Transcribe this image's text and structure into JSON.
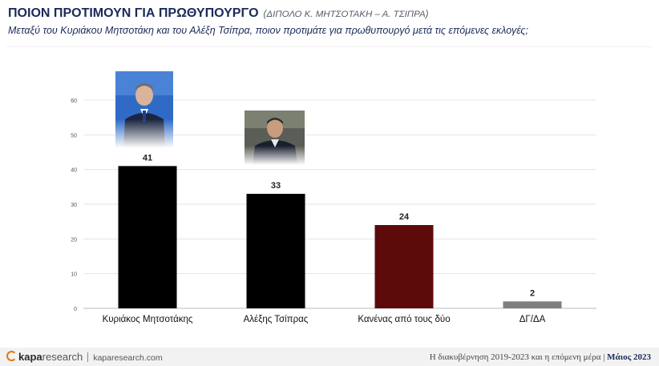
{
  "header": {
    "title": "ΠΟΙΟΝ ΠΡΟΤΙΜΟΥΝ ΓΙΑ ΠΡΩΘΥΠΟΥΡΓΟ",
    "subtitle": "(ΔΙΠΟΛΟ Κ. ΜΗΤΣΟΤΑΚΗ – Α. ΤΣΙΠΡΑ)",
    "question": "Μεταξύ του Κυριάκου Μητσοτάκη και του Αλέξη Τσίπρα, ποιον προτιμάτε για πρωθυπουργό μετά τις επόμενες εκλογές;"
  },
  "chart_data": {
    "type": "bar",
    "categories": [
      "Κυριάκος Μητσοτάκης",
      "Αλέξης Τσίπρας",
      "Κανένας από τους δύο",
      "ΔΓ/ΔΑ"
    ],
    "values": [
      41,
      33,
      24,
      2
    ],
    "data_labels": [
      "41",
      "33",
      "24",
      "2"
    ],
    "colors": [
      "#000000",
      "#000000",
      "#5c0a0a",
      "#7f7f7f"
    ],
    "ylim": [
      0,
      60
    ],
    "yticks": [
      "0",
      "10",
      "20",
      "30",
      "40",
      "50",
      "60"
    ],
    "grid": true,
    "legend": "none"
  },
  "footer": {
    "brand_a": "kapa",
    "brand_b": "research",
    "site": "kaparesearch.com",
    "caption": "Η διακυβέρνηση 2019-2023 και η επόμενη μέρα |",
    "date": "Μάιος 2023"
  }
}
